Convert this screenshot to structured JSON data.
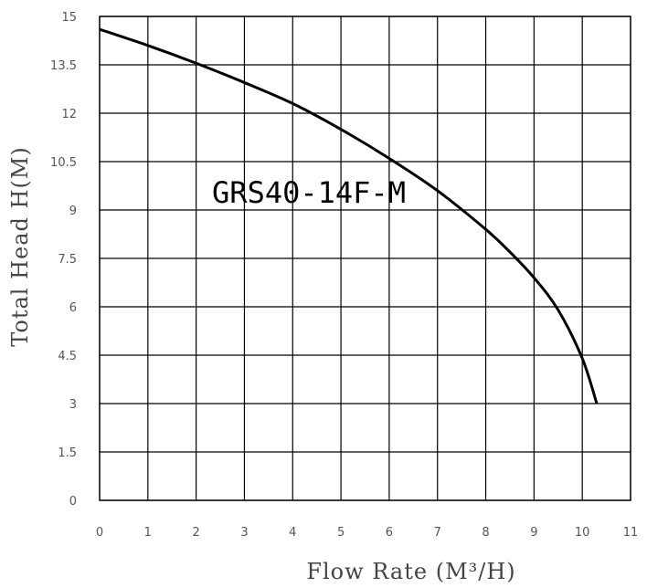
{
  "chart_data": {
    "type": "line",
    "title": "GRS40-14F-M",
    "xlabel": "Flow Rate (M³/H)",
    "ylabel": "Total Head H(M)",
    "xlim": [
      0,
      11
    ],
    "ylim": [
      0,
      15
    ],
    "x_ticks": [
      "0",
      "1",
      "2",
      "3",
      "4",
      "5",
      "6",
      "7",
      "8",
      "9",
      "10",
      "11"
    ],
    "y_ticks": [
      "0",
      "1.5",
      "3",
      "4.5",
      "6",
      "7.5",
      "9",
      "10.5",
      "12",
      "13.5",
      "15"
    ],
    "grid": true,
    "series": [
      {
        "x": [
          0,
          1,
          2,
          3,
          4,
          5,
          6,
          7,
          8,
          8.5,
          9,
          9.5,
          10,
          10.3
        ],
        "y": [
          14.6,
          14.1,
          13.55,
          12.95,
          12.3,
          11.5,
          10.6,
          9.6,
          8.4,
          7.7,
          6.9,
          5.9,
          4.4,
          3.0
        ]
      }
    ]
  }
}
